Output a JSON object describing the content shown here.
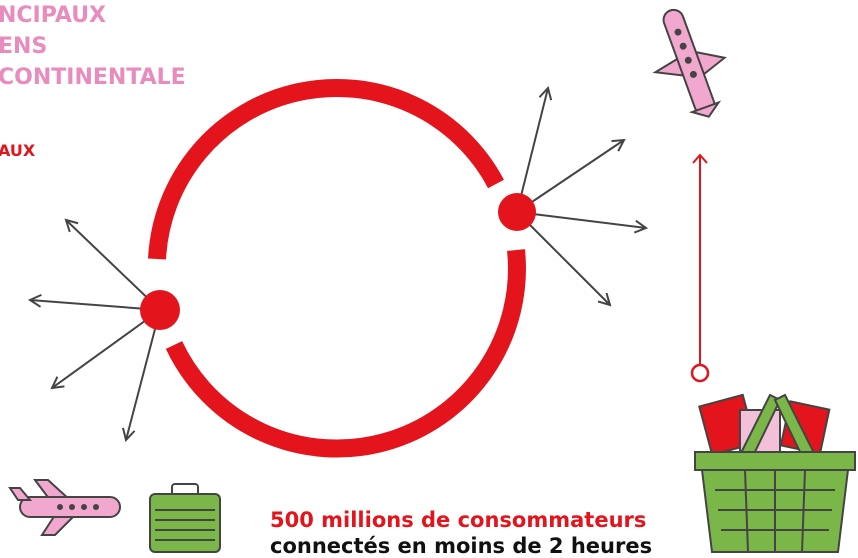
{
  "heading": {
    "lines": [
      "NCIPAUX",
      "ENS",
      "CONTINENTALE"
    ],
    "sub": "AUX"
  },
  "caption": {
    "line1": "500 millions de consommateurs",
    "line2": "connectés en moins de 2 heures"
  }
}
